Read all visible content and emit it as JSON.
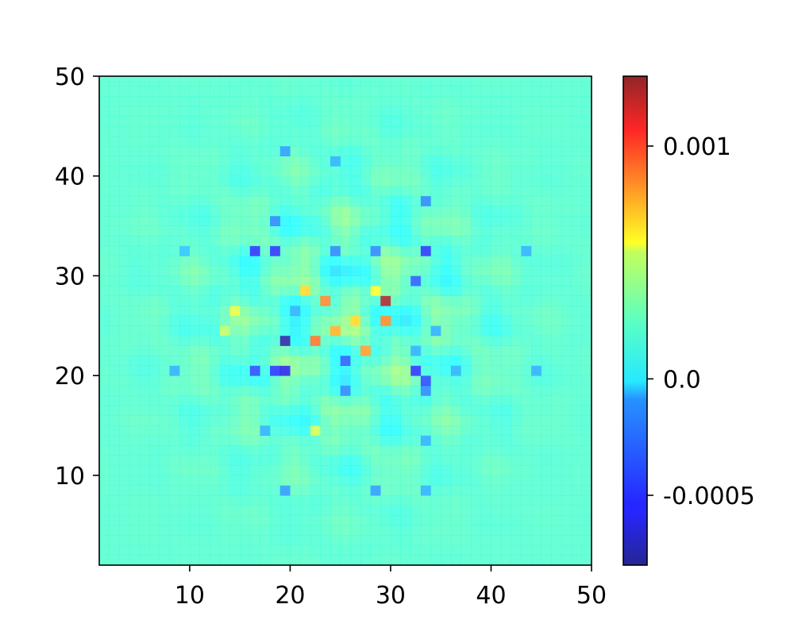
{
  "chart_data": {
    "type": "heatmap",
    "title": "",
    "xlabel": "",
    "ylabel": "",
    "grid": false,
    "colormap": "jet",
    "xlim": [
      1,
      50
    ],
    "ylim": [
      1,
      50
    ],
    "xticks": [
      {
        "value": 10,
        "label": "10"
      },
      {
        "value": 20,
        "label": "20"
      },
      {
        "value": 30,
        "label": "30"
      },
      {
        "value": 40,
        "label": "40"
      },
      {
        "value": 50,
        "label": "50"
      }
    ],
    "yticks": [
      {
        "value": 10,
        "label": "10"
      },
      {
        "value": 20,
        "label": "20"
      },
      {
        "value": 30,
        "label": "30"
      },
      {
        "value": 40,
        "label": "40"
      },
      {
        "value": 50,
        "label": "50"
      }
    ],
    "colorbar": {
      "min": -0.0008,
      "max": 0.0013,
      "ticks": [
        {
          "value": 0.001,
          "label": "0.001"
        },
        {
          "value": 0.0,
          "label": "0.0"
        },
        {
          "value": -0.0005,
          "label": "-0.0005"
        }
      ]
    },
    "field": {
      "description_units": "value",
      "background": 0.0001,
      "center_hot": [
        {
          "x": 29.5,
          "y": 27.5,
          "value": 0.00125
        },
        {
          "x": 22.5,
          "y": 23.5,
          "value": 0.00085
        },
        {
          "x": 23.5,
          "y": 27.5,
          "value": 0.0008
        },
        {
          "x": 29.5,
          "y": 25.5,
          "value": 0.0008
        },
        {
          "x": 27.5,
          "y": 22.5,
          "value": 0.00075
        },
        {
          "x": 24.5,
          "y": 24.5,
          "value": 0.0007
        },
        {
          "x": 21.5,
          "y": 28.5,
          "value": 0.0006
        },
        {
          "x": 26.5,
          "y": 25.5,
          "value": 0.0006
        },
        {
          "x": 28.5,
          "y": 28.5,
          "value": 0.0005
        },
        {
          "x": 14.5,
          "y": 26.5,
          "value": 0.00045
        },
        {
          "x": 22.5,
          "y": 14.5,
          "value": 0.0004
        },
        {
          "x": 13.5,
          "y": 24.5,
          "value": 0.00035
        }
      ],
      "cold": [
        {
          "x": 19.5,
          "y": 23.5,
          "value": -0.00075
        },
        {
          "x": 19.5,
          "y": 20.5,
          "value": -0.0006
        },
        {
          "x": 18.5,
          "y": 20.5,
          "value": -0.0005
        },
        {
          "x": 16.5,
          "y": 32.5,
          "value": -0.0005
        },
        {
          "x": 18.5,
          "y": 32.5,
          "value": -0.0005
        },
        {
          "x": 33.5,
          "y": 32.5,
          "value": -0.0005
        },
        {
          "x": 32.5,
          "y": 20.5,
          "value": -0.0005
        },
        {
          "x": 33.5,
          "y": 19.5,
          "value": -0.00045
        },
        {
          "x": 16.5,
          "y": 20.5,
          "value": -0.00045
        },
        {
          "x": 25.5,
          "y": 21.5,
          "value": -0.0004
        },
        {
          "x": 32.5,
          "y": 29.5,
          "value": -0.0004
        },
        {
          "x": 33.5,
          "y": 37.5,
          "value": -0.0003
        },
        {
          "x": 18.5,
          "y": 35.5,
          "value": -0.0003
        },
        {
          "x": 28.5,
          "y": 32.5,
          "value": -0.0003
        },
        {
          "x": 24.5,
          "y": 32.5,
          "value": -0.0003
        },
        {
          "x": 25.5,
          "y": 18.5,
          "value": -0.0003
        },
        {
          "x": 33.5,
          "y": 18.5,
          "value": -0.0003
        },
        {
          "x": 19.5,
          "y": 8.5,
          "value": -0.00025
        },
        {
          "x": 28.5,
          "y": 8.5,
          "value": -0.00025
        },
        {
          "x": 33.5,
          "y": 8.5,
          "value": -0.0002
        },
        {
          "x": 19.5,
          "y": 42.5,
          "value": -0.00025
        },
        {
          "x": 24.5,
          "y": 41.5,
          "value": -0.0002
        },
        {
          "x": 44.5,
          "y": 20.5,
          "value": -0.0002
        },
        {
          "x": 8.5,
          "y": 20.5,
          "value": -0.0002
        },
        {
          "x": 36.5,
          "y": 20.5,
          "value": -0.0002
        },
        {
          "x": 32.5,
          "y": 22.5,
          "value": -0.0002
        },
        {
          "x": 20.5,
          "y": 26.5,
          "value": -0.0002
        },
        {
          "x": 34.5,
          "y": 24.5,
          "value": -0.0002
        },
        {
          "x": 43.5,
          "y": 32.5,
          "value": -0.0002
        },
        {
          "x": 9.5,
          "y": 32.5,
          "value": -0.00015
        },
        {
          "x": 33.5,
          "y": 13.5,
          "value": -0.0002
        },
        {
          "x": 17.5,
          "y": 14.5,
          "value": -0.0002
        }
      ]
    }
  }
}
